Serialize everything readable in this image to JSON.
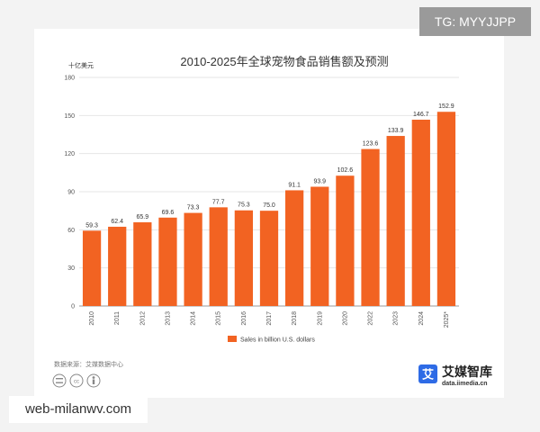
{
  "header": {
    "tag": "TG: MYYJJPP"
  },
  "footer": {
    "watermark": "web-milanwv.com",
    "source": "数据来源：艾媒数据中心",
    "brand_name": "艾媒智库",
    "brand_url": "data.iimedia.cn",
    "brand_logo_char": "艾"
  },
  "colors": {
    "bar": "#f26322"
  },
  "chart_data": {
    "type": "bar",
    "title": "2010-2025年全球宠物食品销售额及预测",
    "unit": "十亿美元",
    "categories": [
      "2010",
      "2011",
      "2012",
      "2013",
      "2014",
      "2015",
      "2016",
      "2017",
      "2018",
      "2019",
      "2020",
      "2022",
      "2023",
      "2024",
      "2025*"
    ],
    "series": [
      {
        "name": "Sales in billion U.S. dollars",
        "values": [
          59.3,
          62.4,
          65.9,
          69.6,
          73.3,
          77.7,
          75.3,
          75.0,
          91.1,
          93.9,
          102.6,
          123.6,
          133.9,
          146.7,
          152.9
        ],
        "labels": [
          "59.3",
          "62.4",
          "65.9",
          "69.6",
          "73.3",
          "77.7",
          "75.3",
          "75.0",
          "91.1",
          "93.9",
          "102.6",
          "123.6",
          "133.9",
          "146.7",
          "152.9"
        ]
      }
    ],
    "ylim": [
      0,
      180
    ],
    "yticks": [
      0,
      30,
      60,
      90,
      120,
      150,
      180
    ],
    "grid": true,
    "legend_position": "bottom"
  }
}
